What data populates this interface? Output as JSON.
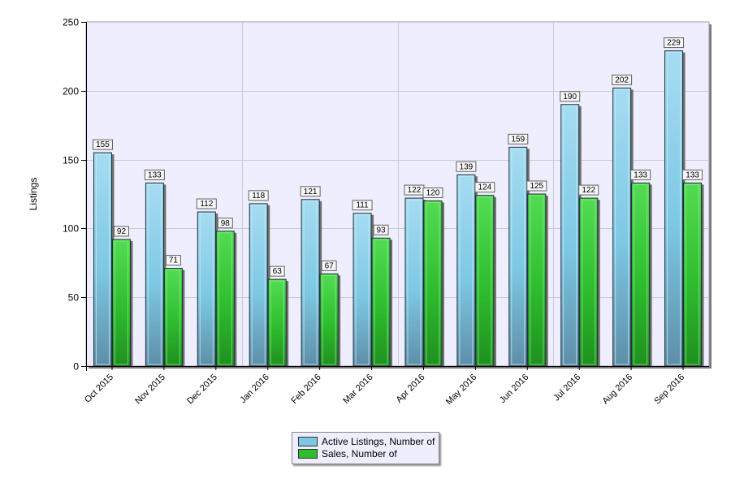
{
  "chart_data": {
    "type": "bar",
    "categories": [
      "Oct 2015",
      "Nov 2015",
      "Dec 2015",
      "Jan 2016",
      "Feb 2016",
      "Mar 2016",
      "Apr 2016",
      "May 2016",
      "Jun 2016",
      "Jul 2016",
      "Aug 2016",
      "Sep 2016"
    ],
    "series": [
      {
        "name": "Active Listings, Number of",
        "color": "#7ec8e3",
        "values": [
          155,
          133,
          112,
          118,
          121,
          111,
          122,
          139,
          159,
          190,
          202,
          229
        ]
      },
      {
        "name": "Sales, Number of",
        "color": "#2ebd2e",
        "values": [
          92,
          71,
          98,
          63,
          67,
          93,
          120,
          124,
          125,
          122,
          133,
          133
        ]
      }
    ],
    "title": "",
    "xlabel": "",
    "ylabel": "Listings",
    "ylim": [
      0,
      250
    ],
    "yticks": [
      0,
      50,
      100,
      150,
      200,
      250
    ],
    "grid": true,
    "legend": "bottom-center",
    "plot_background": "#eeeeff"
  }
}
